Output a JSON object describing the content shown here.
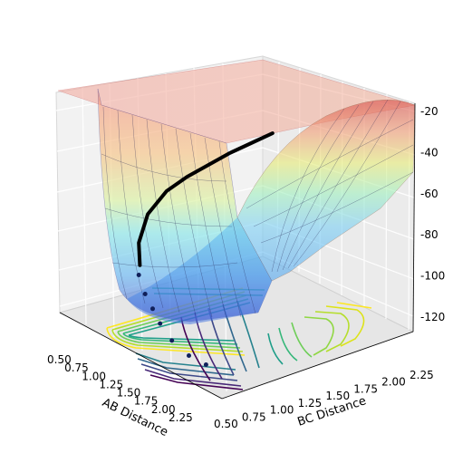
{
  "chart_data": {
    "type": "surface",
    "title": "",
    "xlabel": "AB Distance",
    "ylabel": "BC Distance",
    "zlabel": "",
    "x_ticks": [
      "0.50",
      "0.75",
      "1.00",
      "1.25",
      "1.50",
      "1.75",
      "2.00",
      "2.25"
    ],
    "y_ticks": [
      "0.50",
      "0.75",
      "1.00",
      "1.25",
      "1.50",
      "1.75",
      "2.00",
      "2.25"
    ],
    "z_ticks": [
      "-20",
      "-40",
      "-60",
      "-80",
      "-100",
      "-120"
    ],
    "xlim": [
      0.5,
      2.4
    ],
    "ylim": [
      0.5,
      2.4
    ],
    "zlim": [
      -130,
      -15
    ],
    "grid": true,
    "surface_colormap": "jet (semi-transparent)",
    "contour_colormap": "viridis",
    "trajectory": [
      {
        "x": 0.74,
        "y": 2.3,
        "z": -61
      },
      {
        "x": 0.74,
        "y": 2.1,
        "z": -63
      },
      {
        "x": 0.74,
        "y": 1.9,
        "z": -65
      },
      {
        "x": 0.74,
        "y": 1.7,
        "z": -68
      },
      {
        "x": 0.74,
        "y": 1.5,
        "z": -71
      },
      {
        "x": 0.75,
        "y": 1.3,
        "z": -75
      },
      {
        "x": 0.78,
        "y": 1.1,
        "z": -83
      },
      {
        "x": 0.9,
        "y": 0.92,
        "z": -92
      },
      {
        "x": 1.0,
        "y": 0.85,
        "z": -100
      }
    ],
    "scatter_points": [
      {
        "x": 1.05,
        "y": 0.8,
        "z": -103
      },
      {
        "x": 1.15,
        "y": 0.78,
        "z": -110
      },
      {
        "x": 1.25,
        "y": 0.77,
        "z": -115
      },
      {
        "x": 1.35,
        "y": 0.76,
        "z": -120
      },
      {
        "x": 1.5,
        "y": 0.75,
        "z": -125
      },
      {
        "x": 1.7,
        "y": 0.75,
        "z": -128
      },
      {
        "x": 1.9,
        "y": 0.75,
        "z": -128
      }
    ]
  }
}
